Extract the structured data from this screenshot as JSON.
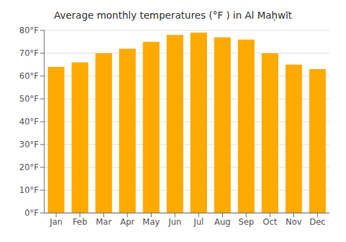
{
  "chart_data": {
    "type": "bar",
    "title": "Average monthly temperatures (°F ) in Al Maḥwīt",
    "categories": [
      "Jan",
      "Feb",
      "Mar",
      "Apr",
      "May",
      "Jun",
      "Jul",
      "Aug",
      "Sep",
      "Oct",
      "Nov",
      "Dec"
    ],
    "values": [
      64,
      66,
      70,
      72,
      75,
      78,
      79,
      77,
      76,
      70,
      65,
      63
    ],
    "color": "#FFAA00",
    "ylim": [
      0,
      80
    ],
    "yticks": [
      {
        "value": 0,
        "label": "0°F"
      },
      {
        "value": 10,
        "label": "10°F"
      },
      {
        "value": 20,
        "label": "20°F"
      },
      {
        "value": 30,
        "label": "30°F"
      },
      {
        "value": 40,
        "label": "40°F"
      },
      {
        "value": 50,
        "label": "50°F"
      },
      {
        "value": 60,
        "label": "60°F"
      },
      {
        "value": 70,
        "label": "70°F"
      },
      {
        "value": 80,
        "label": "80°F"
      }
    ],
    "grid": true
  }
}
